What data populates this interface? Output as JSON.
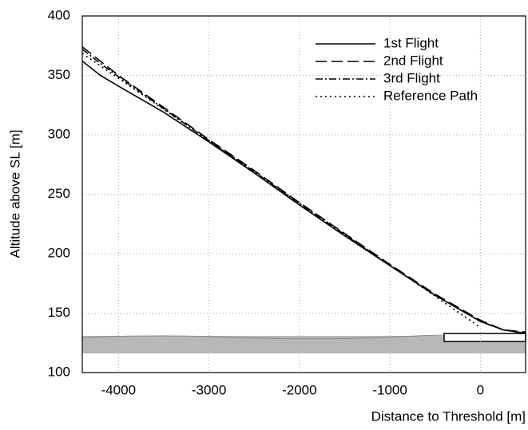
{
  "chart_data": {
    "type": "line",
    "x_label": "Distance to Threshold [m]",
    "y_label": "Altitude above SL [m]",
    "x": [
      -4400,
      -4200,
      -4000,
      -3500,
      -3000,
      -2500,
      -2000,
      -1500,
      -1000,
      -500,
      -250,
      0,
      250,
      500
    ],
    "series": [
      {
        "name": "1st Flight",
        "color": "#000000",
        "style": "solid",
        "values": [
          362,
          350,
          341,
          319,
          294,
          268,
          241,
          215,
          190,
          165,
          154,
          143,
          136,
          133
        ]
      },
      {
        "name": "2nd Flight",
        "color": "#000000",
        "style": "dashed",
        "values": [
          374,
          362,
          350,
          323,
          296,
          270,
          243,
          217,
          191,
          166,
          155,
          144,
          136,
          134
        ]
      },
      {
        "name": "3rd Flight",
        "color": "#000000",
        "style": "dashdot",
        "values": [
          372,
          360,
          349,
          322,
          295,
          269,
          242,
          216,
          190,
          165,
          154,
          143,
          136,
          133
        ]
      },
      {
        "name": "Reference Path",
        "color": "#000000",
        "style": "dotted",
        "values": [
          368.6,
          358,
          347.6,
          321.4,
          295.2,
          269,
          242.8,
          216.6,
          190.4,
          164.2,
          151,
          138,
          null,
          null
        ]
      }
    ],
    "xlim": [
      -4400,
      500
    ],
    "xticks": [
      -4000,
      -3000,
      -2000,
      -1000,
      0
    ],
    "ylim": [
      100,
      400
    ],
    "yticks": [
      100,
      150,
      200,
      250,
      300,
      350,
      400
    ],
    "grid": true,
    "legend": "upper right"
  }
}
